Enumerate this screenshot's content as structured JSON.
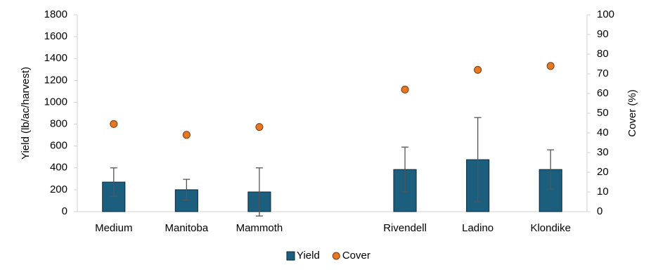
{
  "chart_data": {
    "type": "bar",
    "categories": [
      "Medium",
      "Manitoba",
      "Mammoth",
      null,
      "Rivendell",
      "Ladino",
      "Klondike"
    ],
    "series": [
      {
        "name": "Yield",
        "type": "bar",
        "color": "#1b5e7e",
        "values": [
          270,
          200,
          180,
          null,
          385,
          475,
          385
        ],
        "errors": [
          130,
          95,
          220,
          null,
          205,
          385,
          180
        ]
      },
      {
        "name": "Cover",
        "type": "scatter",
        "axis": "y2",
        "color": "#e87722",
        "values": [
          44.5,
          39,
          43,
          null,
          62,
          72,
          74
        ]
      }
    ],
    "ylabel": "Yield (lb/ac/harvest)",
    "y2label": "Cover (%)",
    "ylim": [
      0,
      1800
    ],
    "yticks": [
      0,
      200,
      400,
      600,
      800,
      1000,
      1200,
      1400,
      1600,
      1800
    ],
    "y2lim": [
      0,
      100
    ],
    "y2ticks": [
      0,
      10,
      20,
      30,
      40,
      50,
      60,
      70,
      80,
      90,
      100
    ],
    "grid": false,
    "legend": "bottom"
  }
}
